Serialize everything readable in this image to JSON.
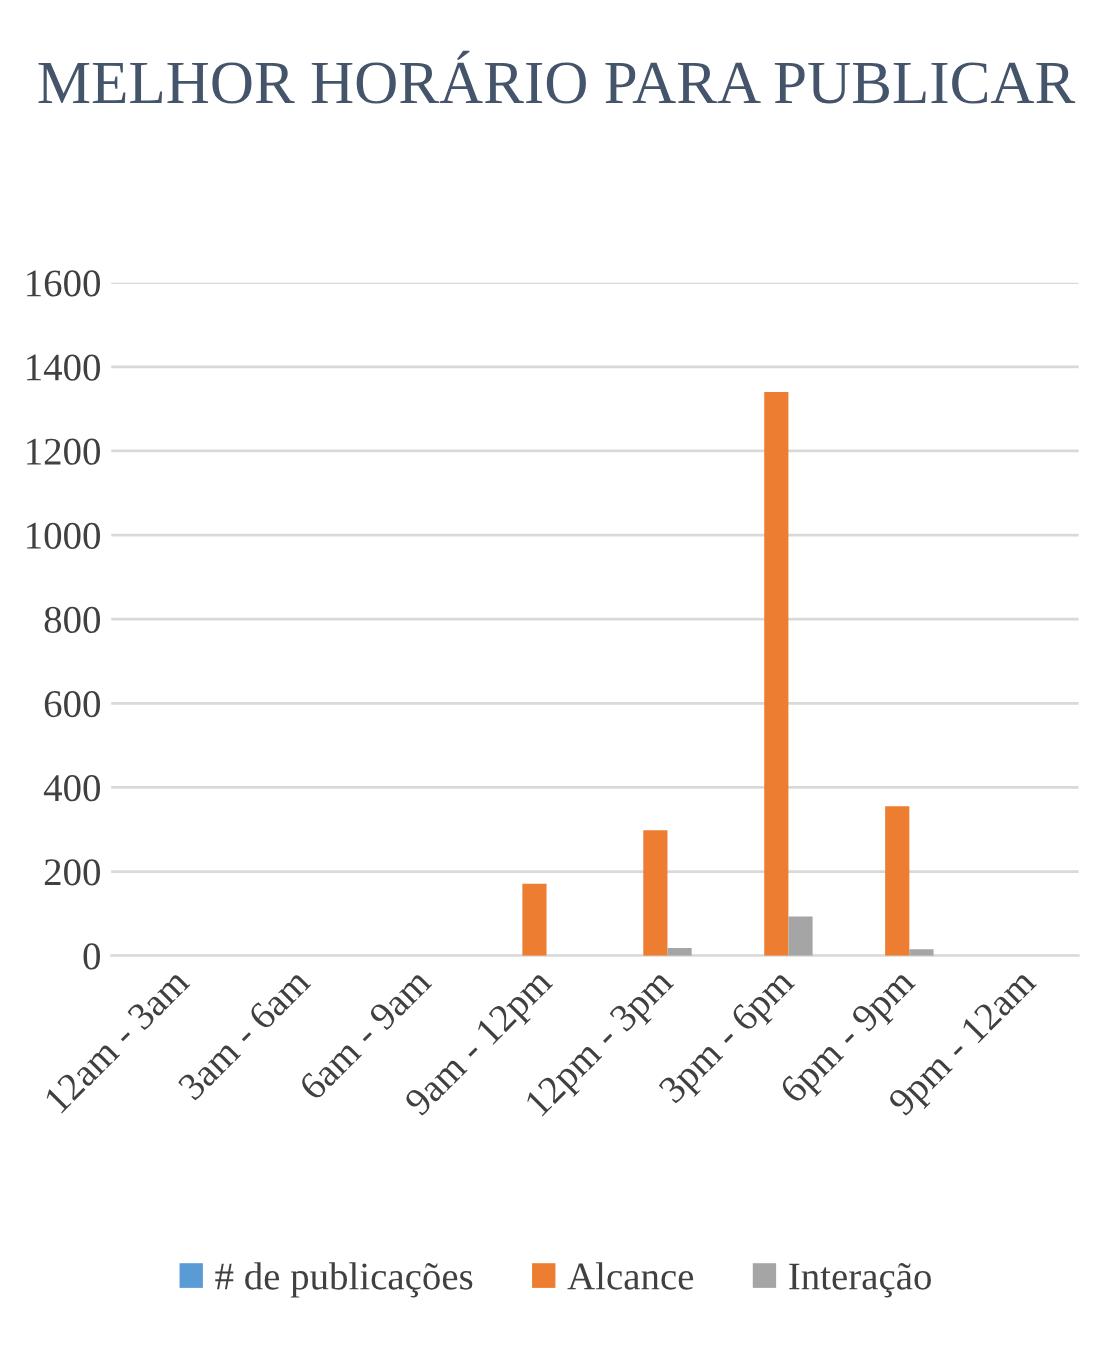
{
  "chart_data": {
    "type": "bar",
    "title": "MELHOR HORÁRIO PARA PUBLICAR",
    "categories": [
      "12am - 3am",
      "3am - 6am",
      "6am - 9am",
      "9am - 12pm",
      "12pm - 3pm",
      "3pm - 6pm",
      "6pm - 9pm",
      "9pm - 12am"
    ],
    "series": [
      {
        "name": "# de publicações",
        "color": "#5b9bd5",
        "values": [
          0,
          0,
          0,
          null,
          null,
          0,
          null,
          0
        ]
      },
      {
        "name": "Alcance",
        "color": "#ed7d31",
        "values": [
          0,
          0,
          0,
          171,
          298,
          1340,
          355,
          0
        ]
      },
      {
        "name": "Interação",
        "color": "#a5a5a5",
        "values": [
          0,
          0,
          0,
          null,
          18,
          93,
          15,
          0
        ]
      }
    ],
    "ylim": [
      0,
      1600
    ],
    "yticks": [
      0,
      200,
      400,
      600,
      800,
      1000,
      1200,
      1400,
      1600
    ],
    "grid": "y",
    "legend": "bottom"
  }
}
